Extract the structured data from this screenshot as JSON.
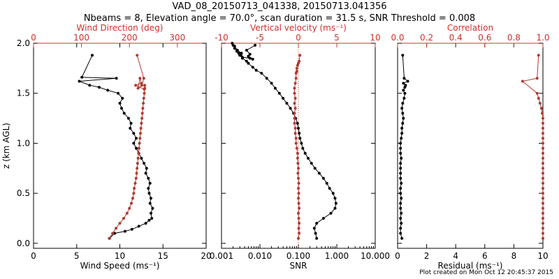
{
  "title_line1": "VAD_08_20150713_041338, 20150713.041356",
  "title_line2": "Nbeams = 8, Elevation angle = 70.0°, scan duration = 31.5 s, SNR Threshold = 0.008",
  "credit": "Plot created on Mon Oct 12 20:45:37 2015",
  "colors": {
    "black_series": "#000000",
    "red_series": "#b03a2e",
    "red_axis": "#d0302a",
    "axis": "#000000"
  },
  "chart_data": [
    {
      "type": "line",
      "panel": "left",
      "ylabel": "z (km AGL)",
      "ylim": [
        -0.05,
        2.0
      ],
      "yticks": [
        0.0,
        0.5,
        1.0,
        1.5,
        2.0
      ],
      "ytick_labels": [
        "0.0",
        "0.5",
        "1.0",
        "1.5",
        "2.0"
      ],
      "bottom_axis": {
        "label": "Wind Speed (ms⁻¹)",
        "range": [
          0,
          20
        ],
        "ticks": [
          0,
          5,
          10,
          15,
          20
        ],
        "tick_labels": [
          "0",
          "5",
          "10",
          "15",
          "20"
        ],
        "scale": "linear"
      },
      "top_axis": {
        "label": "Wind Direction (deg)",
        "range": [
          0,
          360
        ],
        "ticks": [
          0,
          100,
          200,
          300
        ],
        "tick_labels": [
          "0",
          "100",
          "200",
          "300"
        ],
        "scale": "linear"
      },
      "series": [
        {
          "axis": "bottom",
          "color": "black",
          "x": [
            8.8,
            9.4,
            10.6,
            11.4,
            12.2,
            13.0,
            13.4,
            13.7,
            13.6,
            13.8,
            13.5,
            13.6,
            13.4,
            13.3,
            13.5,
            13.3,
            13.0,
            13.1,
            12.8,
            12.5,
            12.2,
            11.9,
            11.6,
            11.9,
            11.6,
            11.2,
            11.3,
            11.0,
            10.5,
            10.2,
            10.0,
            10.3,
            9.8,
            8.6,
            7.6,
            6.5,
            5.3,
            9.6,
            5.6,
            6.8
          ],
          "y": [
            0.05,
            0.1,
            0.12,
            0.14,
            0.17,
            0.2,
            0.23,
            0.25,
            0.3,
            0.35,
            0.4,
            0.45,
            0.5,
            0.55,
            0.6,
            0.65,
            0.7,
            0.75,
            0.8,
            0.85,
            0.9,
            0.95,
            1.0,
            1.05,
            1.1,
            1.15,
            1.2,
            1.25,
            1.3,
            1.35,
            1.4,
            1.45,
            1.5,
            1.53,
            1.56,
            1.58,
            1.62,
            1.65,
            1.66,
            1.88
          ]
        },
        {
          "axis": "top",
          "color": "red",
          "x": [
            158,
            165,
            172,
            180,
            188,
            195,
            200,
            204,
            207,
            209,
            210,
            212,
            214,
            215,
            216,
            217,
            218,
            219,
            220,
            221,
            222,
            223,
            224,
            225,
            226,
            227,
            228,
            229,
            230,
            231,
            232,
            232,
            231,
            213,
            225,
            222,
            218,
            226,
            230,
            216
          ],
          "y": [
            0.05,
            0.1,
            0.15,
            0.2,
            0.25,
            0.3,
            0.35,
            0.4,
            0.45,
            0.5,
            0.55,
            0.6,
            0.65,
            0.7,
            0.75,
            0.8,
            0.85,
            0.9,
            0.95,
            1.0,
            1.05,
            1.1,
            1.15,
            1.2,
            1.25,
            1.3,
            1.35,
            1.4,
            1.45,
            1.5,
            1.55,
            1.58,
            1.54,
            1.58,
            1.6,
            1.65,
            1.55,
            1.58,
            1.65,
            1.88
          ]
        }
      ]
    },
    {
      "type": "line",
      "panel": "middle",
      "ylim": [
        -0.05,
        2.0
      ],
      "bottom_axis": {
        "label": "SNR",
        "range": [
          0.001,
          10.0
        ],
        "ticks": [
          0.001,
          0.01,
          0.1,
          1.0,
          10.0
        ],
        "tick_labels": [
          "0.001",
          "0.010",
          "0.100",
          "1.000",
          "10.000"
        ],
        "scale": "log"
      },
      "top_axis": {
        "label": "Vertical velocity (ms⁻¹)",
        "range": [
          -10,
          10
        ],
        "ticks": [
          -10,
          -5,
          0,
          5,
          10
        ],
        "tick_labels": [
          "-10",
          "-5",
          "0",
          "5",
          "10"
        ],
        "scale": "linear"
      },
      "series": [
        {
          "axis": "bottom",
          "color": "black",
          "x": [
            0.3,
            0.28,
            0.26,
            0.3,
            0.45,
            0.7,
            0.9,
            0.95,
            0.9,
            0.8,
            0.65,
            0.55,
            0.45,
            0.35,
            0.27,
            0.22,
            0.18,
            0.15,
            0.13,
            0.12,
            0.11,
            0.105,
            0.1,
            0.095,
            0.085,
            0.075,
            0.062,
            0.05,
            0.04,
            0.032,
            0.025,
            0.02,
            0.015,
            0.011,
            0.008,
            0.0065,
            0.005,
            0.0045,
            0.0035,
            0.003,
            0.0028,
            0.0025,
            0.0022,
            0.002,
            0.0019,
            0.0022,
            0.0026,
            0.0033,
            0.0032,
            0.0035,
            0.0055,
            0.0065,
            0.005,
            0.0055,
            0.0045,
            0.0075
          ],
          "y": [
            0.05,
            0.1,
            0.15,
            0.2,
            0.25,
            0.3,
            0.35,
            0.4,
            0.45,
            0.5,
            0.55,
            0.6,
            0.65,
            0.7,
            0.75,
            0.8,
            0.85,
            0.9,
            0.95,
            1.0,
            1.05,
            1.1,
            1.15,
            1.2,
            1.25,
            1.3,
            1.35,
            1.4,
            1.45,
            1.5,
            1.55,
            1.6,
            1.65,
            1.7,
            1.73,
            1.76,
            1.8,
            1.82,
            1.85,
            1.88,
            1.9,
            1.92,
            1.95,
            1.98,
            2.0,
            1.97,
            1.93,
            1.9,
            1.88,
            1.86,
            1.85,
            1.84,
            1.87,
            1.89,
            1.93,
            1.98
          ]
        },
        {
          "axis": "top",
          "color": "red",
          "x": [
            0.0,
            0.1,
            0.05,
            0.1,
            0.05,
            0.0,
            0.1,
            0.05,
            0.0,
            0.05,
            0.0,
            0.05,
            0.0,
            -0.05,
            0.0,
            -0.05,
            -0.1,
            -0.1,
            -0.2,
            -0.3,
            -0.3,
            -0.4,
            -0.4,
            -0.5,
            -0.5,
            -0.5,
            -0.4,
            -0.5,
            -0.4,
            -0.5,
            -0.5,
            -0.4,
            -0.3,
            -0.3,
            -0.2,
            -0.2,
            -0.1,
            0.0,
            0.1,
            0.2
          ],
          "y": [
            0.05,
            0.1,
            0.15,
            0.2,
            0.25,
            0.3,
            0.35,
            0.4,
            0.45,
            0.5,
            0.55,
            0.6,
            0.65,
            0.7,
            0.75,
            0.8,
            0.85,
            0.9,
            0.95,
            1.0,
            1.05,
            1.1,
            1.15,
            1.2,
            1.25,
            1.3,
            1.35,
            1.4,
            1.45,
            1.5,
            1.55,
            1.6,
            1.65,
            1.7,
            1.72,
            1.75,
            1.78,
            1.8,
            1.82,
            1.88
          ]
        }
      ]
    },
    {
      "type": "line",
      "panel": "right",
      "ylim": [
        -0.05,
        2.0
      ],
      "bottom_axis": {
        "label": "Residual (ms⁻¹)",
        "range": [
          0,
          10
        ],
        "ticks": [
          0,
          2,
          4,
          6,
          8,
          10
        ],
        "tick_labels": [
          "0",
          "2",
          "4",
          "6",
          "8",
          "10"
        ],
        "scale": "linear"
      },
      "top_axis": {
        "label": "Correlation",
        "range": [
          0.0,
          1.0
        ],
        "ticks": [
          0.0,
          0.2,
          0.4,
          0.6,
          0.8,
          1.0
        ],
        "tick_labels": [
          "0.0",
          "0.2",
          "0.4",
          "0.6",
          "0.8",
          "1.0"
        ],
        "scale": "linear"
      },
      "series": [
        {
          "axis": "bottom",
          "color": "black",
          "x": [
            0.3,
            0.2,
            0.2,
            0.25,
            0.2,
            0.25,
            0.2,
            0.2,
            0.25,
            0.2,
            0.2,
            0.25,
            0.2,
            0.2,
            0.2,
            0.2,
            0.25,
            0.2,
            0.2,
            0.2,
            0.25,
            0.3,
            0.3,
            0.35,
            0.4,
            0.35,
            0.3,
            0.35,
            0.45,
            0.5,
            0.4,
            0.5,
            0.55,
            0.4,
            0.7,
            0.45,
            0.35
          ],
          "y": [
            0.05,
            0.1,
            0.15,
            0.2,
            0.25,
            0.3,
            0.35,
            0.4,
            0.45,
            0.5,
            0.55,
            0.6,
            0.65,
            0.7,
            0.75,
            0.8,
            0.85,
            0.9,
            0.95,
            1.0,
            1.05,
            1.1,
            1.15,
            1.2,
            1.25,
            1.3,
            1.35,
            1.4,
            1.45,
            1.5,
            1.53,
            1.56,
            1.58,
            1.6,
            1.62,
            1.65,
            1.88
          ]
        },
        {
          "axis": "top",
          "color": "red",
          "x": [
            1.0,
            1.0,
            1.0,
            1.0,
            1.0,
            1.0,
            1.0,
            1.0,
            1.0,
            1.0,
            1.0,
            1.0,
            1.0,
            1.0,
            1.0,
            1.0,
            1.0,
            1.0,
            1.0,
            1.0,
            1.0,
            1.0,
            1.0,
            1.0,
            1.0,
            0.995,
            0.99,
            0.98,
            0.97,
            0.96,
            0.86,
            0.96,
            0.97
          ],
          "y": [
            0.05,
            0.1,
            0.15,
            0.2,
            0.25,
            0.3,
            0.35,
            0.4,
            0.45,
            0.5,
            0.55,
            0.6,
            0.65,
            0.7,
            0.75,
            0.8,
            0.85,
            0.9,
            0.95,
            1.0,
            1.05,
            1.1,
            1.15,
            1.2,
            1.25,
            1.3,
            1.35,
            1.4,
            1.45,
            1.5,
            1.62,
            1.65,
            1.88
          ]
        }
      ]
    }
  ]
}
